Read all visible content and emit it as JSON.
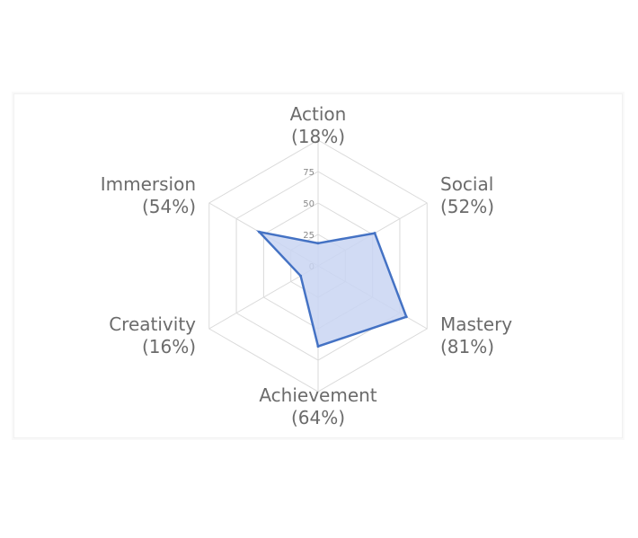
{
  "chart_data": {
    "type": "radar",
    "categories": [
      "Action",
      "Social",
      "Mastery",
      "Achievement",
      "Creativity",
      "Immersion"
    ],
    "category_values": [
      "(18%)",
      "(52%)",
      "(81%)",
      "(64%)",
      "(16%)",
      "(54%)"
    ],
    "values": [
      18,
      52,
      81,
      64,
      16,
      54
    ],
    "rlim": [
      0,
      100
    ],
    "ticks": [
      0,
      25,
      50,
      75
    ],
    "grid": true,
    "legend": "none",
    "colors": {
      "line": "#4472C4",
      "fill": "#C9D5F2",
      "grid": "#DADADA"
    }
  }
}
